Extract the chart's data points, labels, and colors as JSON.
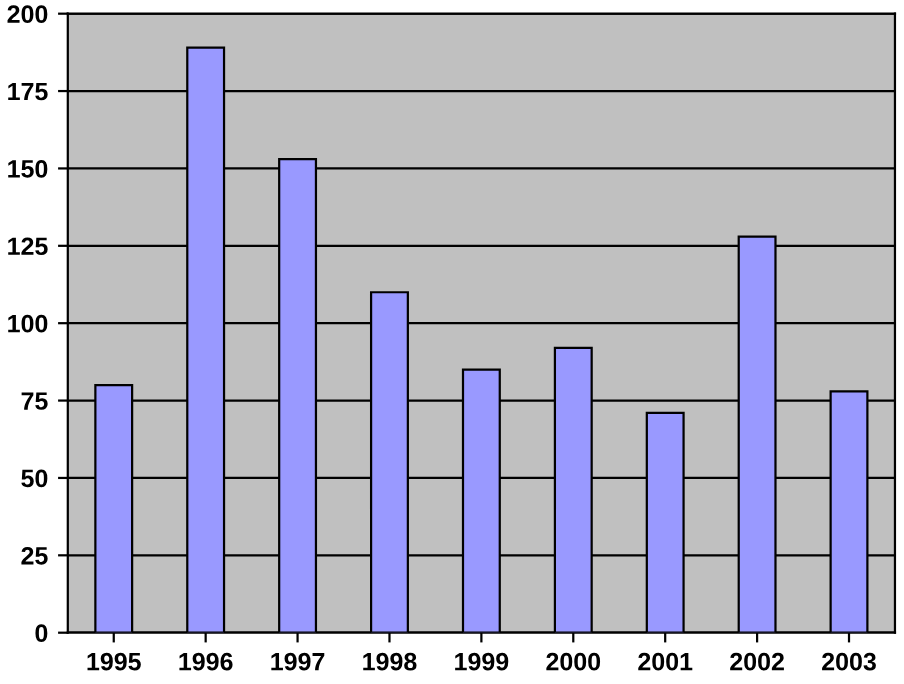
{
  "chart_data": {
    "type": "bar",
    "categories": [
      "1995",
      "1996",
      "1997",
      "1998",
      "1999",
      "2000",
      "2001",
      "2002",
      "2003"
    ],
    "values": [
      80,
      189,
      153,
      110,
      85,
      92,
      71,
      128,
      78
    ],
    "color": "#9999ff",
    "ylim": [
      0,
      200
    ],
    "yticks": [
      0,
      25,
      50,
      75,
      100,
      125,
      150,
      175,
      200
    ],
    "grid": "y",
    "legend": false
  }
}
